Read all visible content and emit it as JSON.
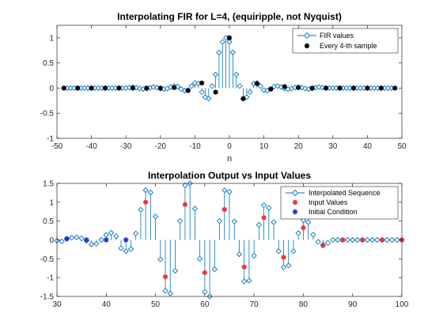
{
  "chart_data": [
    {
      "type": "stem",
      "title": "Interpolating FIR for L=4,  (equiripple, not Nyquist)",
      "xlabel": "n",
      "ylabel": "",
      "xlim": [
        -50,
        50
      ],
      "ylim": [
        -1,
        1.25
      ],
      "xticks": [
        -50,
        -40,
        -30,
        -20,
        -10,
        0,
        10,
        20,
        30,
        40,
        50
      ],
      "yticks": [
        -1,
        -0.5,
        0,
        0.5,
        1
      ],
      "legend_position": "top-right",
      "grid": false,
      "series": [
        {
          "name": "FIR values",
          "color": "#0072BD",
          "marker": "diamond-open",
          "x": [
            -47,
            -46,
            -45,
            -44,
            -43,
            -42,
            -41,
            -40,
            -39,
            -38,
            -37,
            -36,
            -35,
            -34,
            -33,
            -32,
            -31,
            -30,
            -29,
            -28,
            -27,
            -26,
            -25,
            -24,
            -23,
            -22,
            -21,
            -20,
            -19,
            -18,
            -17,
            -16,
            -15,
            -14,
            -13,
            -12,
            -11,
            -10,
            -9,
            -8,
            -7,
            -6,
            -5,
            -4,
            -3,
            -2,
            -1,
            0,
            1,
            2,
            3,
            4,
            5,
            6,
            7,
            8,
            9,
            10,
            11,
            12,
            13,
            14,
            15,
            16,
            17,
            18,
            19,
            20,
            21,
            22,
            23,
            24,
            25,
            26,
            27,
            28,
            29,
            30,
            31,
            32,
            33,
            34,
            35,
            36,
            37,
            38,
            39,
            40,
            41,
            42,
            43,
            44,
            45,
            46,
            47
          ],
          "y": [
            0,
            0,
            0,
            0,
            0,
            0,
            0,
            0,
            0,
            0,
            0,
            0,
            0,
            0,
            0,
            0,
            0,
            0,
            0.01,
            0.02,
            0.01,
            -0.01,
            -0.02,
            -0.01,
            0.01,
            0.02,
            0.01,
            -0.01,
            -0.02,
            -0.01,
            0.02,
            0.04,
            0.03,
            -0.02,
            -0.05,
            -0.04,
            0.04,
            0.1,
            0.09,
            -0.08,
            -0.18,
            -0.21,
            0.04,
            0.27,
            0.71,
            0.92,
            1.0,
            0.92,
            0.71,
            0.27,
            0.04,
            -0.21,
            -0.18,
            -0.08,
            0.09,
            0.1,
            0.04,
            -0.04,
            -0.05,
            -0.02,
            0.03,
            0.04,
            0.02,
            -0.01,
            -0.02,
            -0.01,
            0.01,
            0.02,
            0.01,
            -0.01,
            -0.02,
            -0.01,
            0.01,
            0.02,
            0.01,
            0,
            0,
            0,
            0,
            0,
            0,
            0,
            0,
            0,
            0,
            0,
            0,
            0,
            0,
            0,
            0,
            0,
            0,
            0,
            0
          ]
        },
        {
          "name": "Every 4-th sample",
          "color": "#000000",
          "marker": "star",
          "x": [
            -48,
            -44,
            -40,
            -36,
            -32,
            -28,
            -24,
            -20,
            -16,
            -12,
            -8,
            -4,
            0,
            4,
            8,
            12,
            16,
            20,
            24,
            28,
            32,
            36,
            40,
            44,
            48
          ],
          "y": [
            0,
            0,
            0,
            0,
            0,
            0,
            0,
            0,
            0.01,
            -0.05,
            0.1,
            -0.08,
            1.0,
            -0.21,
            0.09,
            -0.02,
            0.03,
            0.01,
            0,
            0,
            0,
            0,
            0,
            0,
            0
          ]
        }
      ]
    },
    {
      "type": "stem",
      "title": "Interpolation Output vs Input Values",
      "xlabel": "",
      "ylabel": "",
      "xlim": [
        30,
        100
      ],
      "ylim": [
        -1.5,
        1.5
      ],
      "xticks": [
        30,
        40,
        50,
        60,
        70,
        80,
        90,
        100
      ],
      "yticks": [
        -1.5,
        -1,
        -0.5,
        0,
        0.5,
        1,
        1.5
      ],
      "legend_position": "top-right",
      "grid": false,
      "series": [
        {
          "name": "Interpolated Sequence",
          "color": "#0072BD",
          "marker": "diamond-open",
          "x": [
            30,
            31,
            32,
            33,
            34,
            35,
            36,
            37,
            38,
            39,
            40,
            41,
            42,
            43,
            44,
            45,
            46,
            47,
            48,
            49,
            50,
            51,
            52,
            53,
            54,
            55,
            56,
            57,
            58,
            59,
            60,
            61,
            62,
            63,
            64,
            65,
            66,
            67,
            68,
            69,
            70,
            71,
            72,
            73,
            74,
            75,
            76,
            77,
            78,
            79,
            80,
            81,
            82,
            83,
            84,
            85,
            86,
            87,
            88,
            89,
            90,
            91,
            92,
            93,
            94,
            95,
            96,
            97,
            98,
            99,
            100
          ],
          "y": [
            -0.02,
            -0.04,
            0.03,
            0.06,
            0.07,
            0.04,
            -0.02,
            -0.12,
            -0.1,
            0.0,
            0.13,
            0.19,
            0.1,
            -0.22,
            -0.3,
            -0.24,
            0.17,
            0.8,
            1.32,
            1.26,
            0.62,
            -0.52,
            -1.35,
            -1.42,
            -0.82,
            0.5,
            1.45,
            1.5,
            0.83,
            -0.5,
            -1.38,
            -1.5,
            -0.78,
            0.5,
            1.32,
            1.28,
            0.49,
            -0.38,
            -1.1,
            -1.08,
            -0.42,
            0.4,
            0.92,
            0.85,
            0.47,
            -0.3,
            -0.73,
            -0.68,
            -0.3,
            0.18,
            0.52,
            0.47,
            0.14,
            -0.05,
            -0.13,
            -0.08,
            0.0,
            0.0,
            0.0,
            0.0,
            0.0,
            0.0,
            0.0,
            0.0,
            0.0,
            0.0,
            0.0,
            0.0,
            0.0,
            0.0,
            0.0
          ]
        },
        {
          "name": "Input Values",
          "color": "#EE3333",
          "marker": "star",
          "x": [
            48,
            52,
            56,
            60,
            64,
            68,
            72,
            76,
            80,
            84,
            88,
            92,
            96,
            100
          ],
          "y": [
            1.0,
            -0.98,
            0.94,
            -0.87,
            0.81,
            -0.72,
            0.59,
            -0.46,
            0.32,
            -0.15,
            0,
            0,
            0,
            0
          ]
        },
        {
          "name": "Initial Condition",
          "color": "#2233DD",
          "marker": "star",
          "x": [
            32,
            36,
            40,
            44
          ],
          "y": [
            0.03,
            0.0,
            0.0,
            0.0
          ]
        }
      ]
    }
  ]
}
